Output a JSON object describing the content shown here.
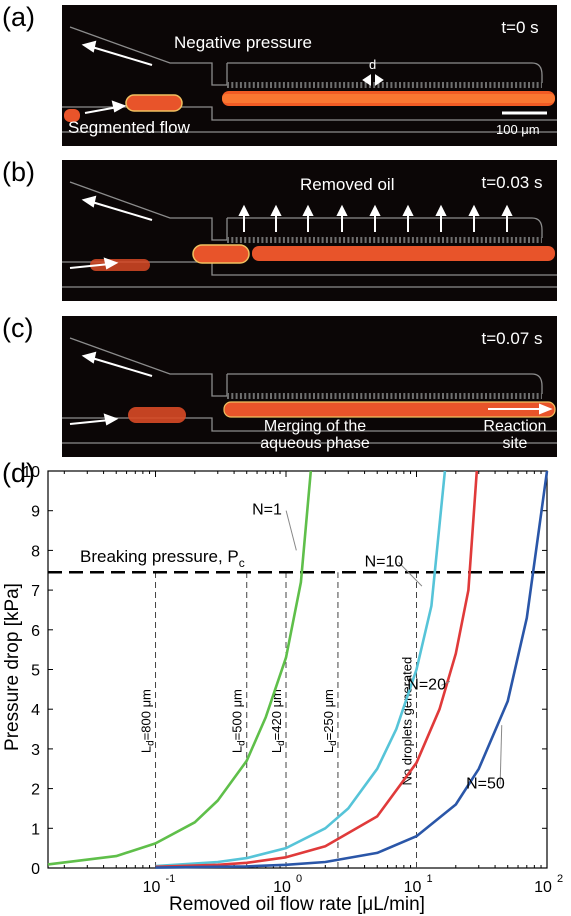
{
  "panels": {
    "a": {
      "label": "(a)",
      "time": "t=0 s",
      "negative_pressure": "Negative pressure",
      "d_label": "d",
      "segmented_flow": "Segmented flow",
      "scale_bar": "100 μm"
    },
    "b": {
      "label": "(b)",
      "time": "t=0.03 s",
      "removed_oil": "Removed oil"
    },
    "c": {
      "label": "(c)",
      "time": "t=0.07 s",
      "merging_line1": "Merging of the",
      "merging_line2": "aqueous phase",
      "reaction_line1": "Reaction",
      "reaction_line2": "site"
    }
  },
  "chart_data": {
    "panel_label": "(d)",
    "type": "line",
    "xscale": "log",
    "xlim": [
      0.015,
      100
    ],
    "ylim": [
      0,
      10
    ],
    "xlabel": "Removed oil flow rate [μL/min]",
    "ylabel": "Pressure drop [kPa]",
    "x_tick_values": [
      0.1,
      1,
      10,
      100
    ],
    "x_tick_labels": [
      "10",
      "10",
      "10",
      "10"
    ],
    "x_tick_exponents": [
      "-1",
      "0",
      "1",
      "2"
    ],
    "y_ticks": [
      0,
      1,
      2,
      3,
      4,
      5,
      6,
      7,
      8,
      9,
      10
    ],
    "series": [
      {
        "name": "N=1",
        "color": "#5fbf4a",
        "x": [
          0.015,
          0.05,
          0.1,
          0.2,
          0.3,
          0.5,
          0.7,
          1.0,
          1.3,
          1.55
        ],
        "y": [
          0.09,
          0.3,
          0.62,
          1.15,
          1.7,
          2.7,
          3.8,
          5.3,
          7.2,
          10
        ]
      },
      {
        "name": "N=10",
        "color": "#56c4d8",
        "x": [
          0.1,
          0.3,
          0.5,
          1,
          2,
          3,
          5,
          7,
          10,
          13,
          16.5
        ],
        "y": [
          0.05,
          0.15,
          0.25,
          0.5,
          1.0,
          1.5,
          2.5,
          3.5,
          5.0,
          6.6,
          10
        ]
      },
      {
        "name": "N=20",
        "color": "#e03a3a",
        "x": [
          0.1,
          0.3,
          0.5,
          1,
          2,
          5,
          10,
          15,
          20,
          25,
          29
        ],
        "y": [
          0.03,
          0.08,
          0.13,
          0.27,
          0.55,
          1.3,
          2.65,
          4.0,
          5.4,
          7.0,
          10
        ]
      },
      {
        "name": "N=50",
        "color": "#2a56a8",
        "x": [
          0.1,
          0.5,
          1,
          2,
          5,
          10,
          20,
          30,
          50,
          70,
          100
        ],
        "y": [
          0.01,
          0.04,
          0.08,
          0.15,
          0.38,
          0.8,
          1.6,
          2.5,
          4.2,
          6.3,
          10
        ]
      }
    ],
    "hline": {
      "y": 7.45,
      "label": "Breaking pressure, P",
      "label_sub": "c"
    },
    "vlines": [
      {
        "x": 0.1,
        "label": "L",
        "sub": "d",
        "rest": "=800 μm"
      },
      {
        "x": 0.5,
        "label": "L",
        "sub": "d",
        "rest": "=500 μm"
      },
      {
        "x": 1.0,
        "label": "L",
        "sub": "d",
        "rest": "=420 μm"
      },
      {
        "x": 2.5,
        "label": "L",
        "sub": "d",
        "rest": "=250 μm"
      },
      {
        "x": 10,
        "label": "No droplets generated",
        "sub": "",
        "rest": ""
      }
    ]
  }
}
